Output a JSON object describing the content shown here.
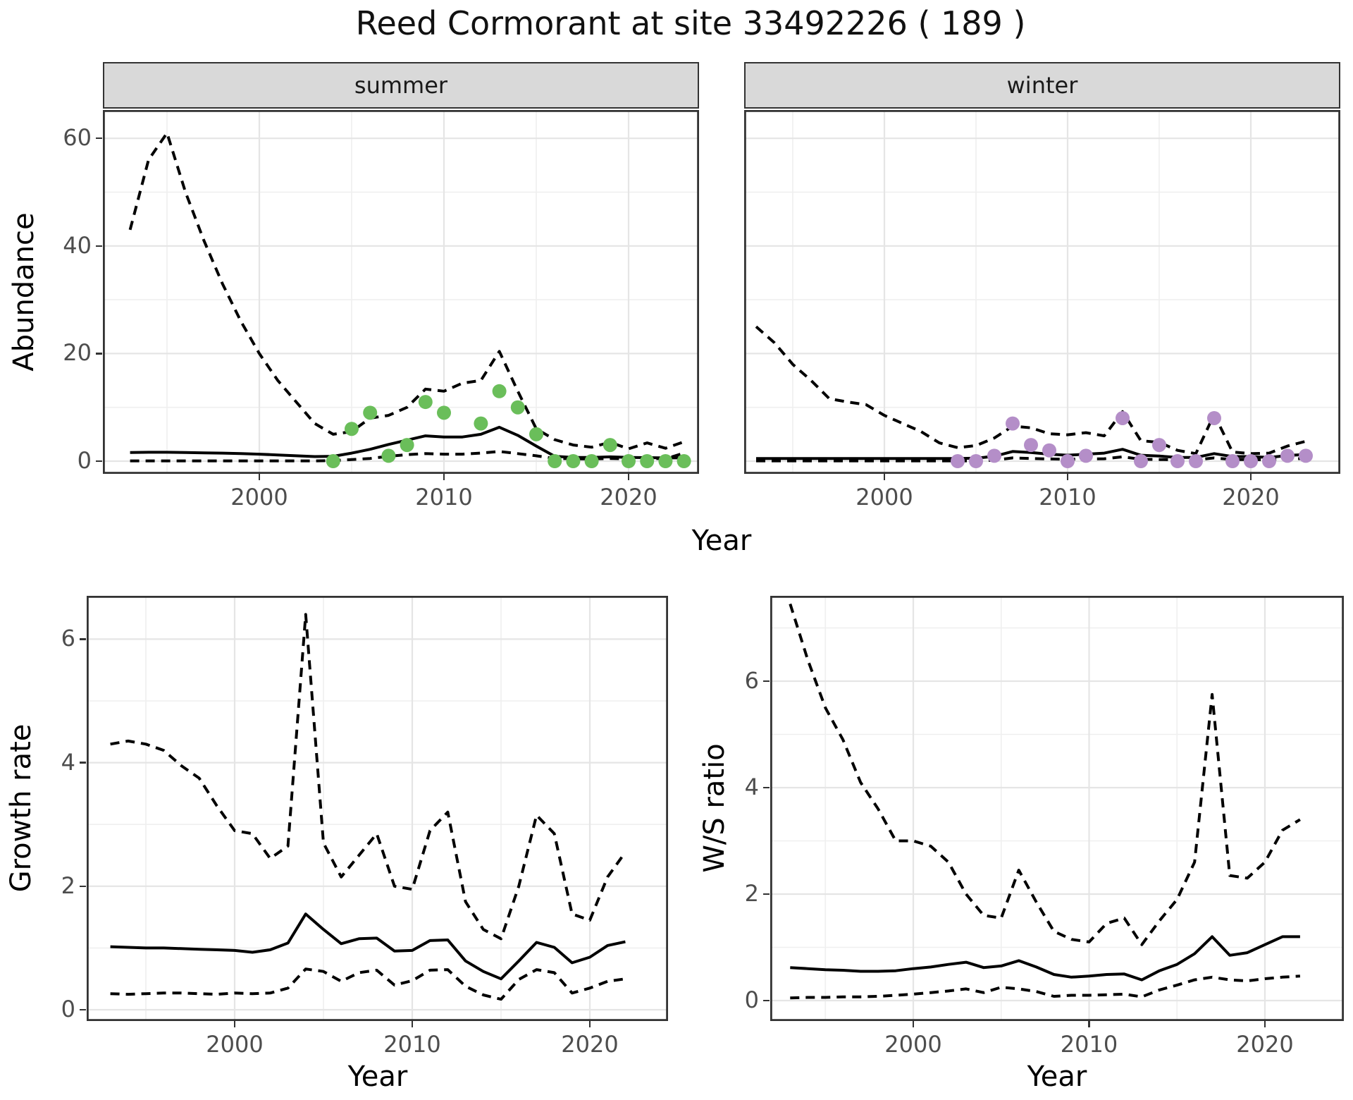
{
  "title": "Reed Cormorant at site 33492226 ( 189 )",
  "colors": {
    "summer_point": "#6abe5a",
    "winter_point": "#b48ec8",
    "line": "#000000",
    "strip_bg": "#d9d9d9",
    "panel_border": "#333333",
    "grid_major": "#e5e5e5",
    "grid_minor": "#efefef",
    "tick_text": "#4d4d4d"
  },
  "chart_data": [
    {
      "id": "abundance-summer",
      "type": "line",
      "facet_label": "summer",
      "ylabel": "Abundance",
      "xlabel": "Year",
      "xlim": [
        1991.5,
        2023.8
      ],
      "ylim": [
        -2.4,
        65.3
      ],
      "xticks": [
        2000,
        2010,
        2020
      ],
      "xticks_minor": [
        1995,
        2005,
        2015
      ],
      "yticks": [
        0,
        20,
        40,
        60
      ],
      "yticks_minor": [
        10,
        30,
        50
      ],
      "grid": true,
      "legend": "none",
      "series": [
        {
          "name": "upper_ci",
          "style": "dashed",
          "x": [
            1993,
            1994,
            1995,
            1996,
            1997,
            1998,
            1999,
            2000,
            2001,
            2002,
            2003,
            2004,
            2005,
            2006,
            2007,
            2008,
            2009,
            2010,
            2011,
            2012,
            2013,
            2014,
            2015,
            2016,
            2017,
            2018,
            2019,
            2020,
            2021,
            2022,
            2023
          ],
          "y": [
            43,
            56,
            61,
            50,
            41,
            33,
            26,
            20,
            15,
            11,
            7,
            5,
            5.5,
            8,
            8.5,
            10,
            13.4,
            13,
            14.5,
            15,
            20.4,
            13,
            6,
            4,
            3,
            2.6,
            3.5,
            2.3,
            3.4,
            2.4,
            3.6
          ]
        },
        {
          "name": "fit",
          "style": "solid",
          "x": [
            1993,
            1994,
            1995,
            1996,
            1997,
            1998,
            1999,
            2000,
            2001,
            2002,
            2003,
            2004,
            2005,
            2006,
            2007,
            2008,
            2009,
            2010,
            2011,
            2012,
            2013,
            2014,
            2015,
            2016,
            2017,
            2018,
            2019,
            2020,
            2021,
            2022,
            2023
          ],
          "y": [
            1.6,
            1.65,
            1.65,
            1.6,
            1.55,
            1.5,
            1.4,
            1.3,
            1.15,
            1.0,
            0.85,
            0.9,
            1.5,
            2.2,
            3.1,
            3.9,
            4.7,
            4.5,
            4.5,
            5.0,
            6.3,
            4.8,
            2.8,
            0.9,
            0.7,
            0.7,
            0.8,
            0.7,
            0.65,
            0.6,
            0.6
          ]
        },
        {
          "name": "lower_ci",
          "style": "dashed",
          "x": [
            1993,
            1994,
            1995,
            1996,
            1997,
            1998,
            1999,
            2000,
            2001,
            2002,
            2003,
            2004,
            2005,
            2006,
            2007,
            2008,
            2009,
            2010,
            2011,
            2012,
            2013,
            2014,
            2015,
            2016,
            2017,
            2018,
            2019,
            2020,
            2021,
            2022,
            2023
          ],
          "y": [
            0.05,
            0.05,
            0.05,
            0.05,
            0.05,
            0.05,
            0.05,
            0.05,
            0.05,
            0.05,
            0.05,
            0.1,
            0.3,
            0.5,
            0.9,
            1.2,
            1.4,
            1.3,
            1.3,
            1.5,
            1.8,
            1.4,
            1.0,
            0.5,
            0.45,
            0.4,
            0.5,
            0.4,
            0.5,
            0.45,
            1.5
          ]
        },
        {
          "name": "observed",
          "style": "points",
          "color": "#6abe5a",
          "x": [
            2004,
            2005,
            2006,
            2007,
            2008,
            2009,
            2010,
            2012,
            2013,
            2014,
            2015,
            2016,
            2017,
            2018,
            2019,
            2020,
            2021,
            2022,
            2023
          ],
          "y": [
            0,
            6,
            9,
            1,
            3,
            11,
            9,
            7,
            13,
            10,
            5,
            0,
            0,
            0,
            3,
            0,
            0,
            0,
            0
          ]
        }
      ]
    },
    {
      "id": "abundance-winter",
      "type": "line",
      "facet_label": "winter",
      "ylabel": "Abundance",
      "xlabel": "Year",
      "xlim": [
        1991.5,
        2023.8
      ],
      "ylim": [
        -2.4,
        65.3
      ],
      "xticks": [
        2000,
        2010,
        2020
      ],
      "xticks_minor": [
        1995,
        2005,
        2015
      ],
      "yticks": [
        0,
        20,
        40,
        60
      ],
      "yticks_minor": [
        10,
        30,
        50
      ],
      "grid": true,
      "legend": "none",
      "series": [
        {
          "name": "upper_ci",
          "style": "dashed",
          "x": [
            1993,
            1994,
            1995,
            1996,
            1997,
            1998,
            1999,
            2000,
            2001,
            2002,
            2003,
            2004,
            2005,
            2006,
            2007,
            2008,
            2009,
            2010,
            2011,
            2012,
            2013,
            2014,
            2015,
            2016,
            2017,
            2018,
            2019,
            2020,
            2021,
            2022,
            2023
          ],
          "y": [
            25,
            22,
            18,
            15,
            11.6,
            11,
            10.5,
            8.5,
            7,
            5.5,
            3.4,
            2.5,
            2.9,
            4.3,
            6.5,
            6.2,
            5.1,
            4.9,
            5.3,
            4.7,
            9.2,
            3.8,
            3.5,
            2.0,
            1.4,
            8.7,
            1.7,
            1.4,
            1.5,
            2.8,
            3.7
          ]
        },
        {
          "name": "fit",
          "style": "solid",
          "x": [
            1993,
            1994,
            1995,
            1996,
            1997,
            1998,
            1999,
            2000,
            2001,
            2002,
            2003,
            2004,
            2005,
            2006,
            2007,
            2008,
            2009,
            2010,
            2011,
            2012,
            2013,
            2014,
            2015,
            2016,
            2017,
            2018,
            2019,
            2020,
            2021,
            2022,
            2023
          ],
          "y": [
            0.5,
            0.5,
            0.5,
            0.5,
            0.5,
            0.5,
            0.5,
            0.5,
            0.5,
            0.5,
            0.5,
            0.5,
            0.55,
            0.9,
            1.8,
            1.6,
            1.3,
            1.1,
            1.3,
            1.5,
            2.2,
            1.1,
            0.95,
            0.7,
            0.7,
            1.4,
            0.85,
            0.85,
            0.7,
            1.05,
            1.25
          ]
        },
        {
          "name": "lower_ci",
          "style": "dashed",
          "x": [
            1993,
            1994,
            1995,
            1996,
            1997,
            1998,
            1999,
            2000,
            2001,
            2002,
            2003,
            2004,
            2005,
            2006,
            2007,
            2008,
            2009,
            2010,
            2011,
            2012,
            2013,
            2014,
            2015,
            2016,
            2017,
            2018,
            2019,
            2020,
            2021,
            2022,
            2023
          ],
          "y": [
            0.05,
            0.05,
            0.05,
            0.05,
            0.05,
            0.05,
            0.05,
            0.05,
            0.05,
            0.05,
            0.05,
            0.05,
            0.05,
            0.2,
            0.6,
            0.5,
            0.4,
            0.35,
            0.4,
            0.45,
            0.8,
            0.35,
            0.3,
            0.25,
            0.25,
            0.6,
            0.3,
            0.3,
            0.25,
            0.4,
            0.5
          ]
        },
        {
          "name": "observed",
          "style": "points",
          "color": "#b48ec8",
          "x": [
            2004,
            2005,
            2006,
            2007,
            2008,
            2009,
            2010,
            2011,
            2013,
            2014,
            2015,
            2016,
            2017,
            2018,
            2019,
            2020,
            2021,
            2022,
            2023
          ],
          "y": [
            0,
            0,
            1,
            7,
            3,
            2,
            0,
            1,
            8,
            0,
            3,
            0,
            0,
            8,
            0,
            0,
            0,
            1,
            1
          ]
        }
      ]
    },
    {
      "id": "growth-rate",
      "type": "line",
      "facet_label": "",
      "ylabel": "Growth rate",
      "xlabel": "Year",
      "xlim": [
        1991.7,
        2024.4
      ],
      "ylim": [
        -0.18,
        6.7
      ],
      "xticks": [
        2000,
        2010,
        2020
      ],
      "xticks_minor": [
        1995,
        2005,
        2015
      ],
      "yticks": [
        0,
        2,
        4,
        6
      ],
      "yticks_minor": [
        1,
        3,
        5
      ],
      "grid": true,
      "legend": "none",
      "series": [
        {
          "name": "upper_ci",
          "style": "dashed",
          "x": [
            1993,
            1994,
            1995,
            1996,
            1997,
            1998,
            1999,
            2000,
            2001,
            2002,
            2003,
            2004,
            2005,
            2006,
            2007,
            2008,
            2009,
            2010,
            2011,
            2012,
            2013,
            2014,
            2015,
            2016,
            2017,
            2018,
            2019,
            2020,
            2021,
            2022
          ],
          "y": [
            4.3,
            4.35,
            4.3,
            4.2,
            3.95,
            3.75,
            3.3,
            2.9,
            2.85,
            2.45,
            2.65,
            6.4,
            2.7,
            2.15,
            2.5,
            2.85,
            2.0,
            1.95,
            2.9,
            3.2,
            1.75,
            1.3,
            1.15,
            2.0,
            3.15,
            2.85,
            1.55,
            1.45,
            2.15,
            2.55
          ]
        },
        {
          "name": "fit",
          "style": "solid",
          "x": [
            1993,
            1994,
            1995,
            1996,
            1997,
            1998,
            1999,
            2000,
            2001,
            2002,
            2003,
            2004,
            2005,
            2006,
            2007,
            2008,
            2009,
            2010,
            2011,
            2012,
            2013,
            2014,
            2015,
            2016,
            2017,
            2018,
            2019,
            2020,
            2021,
            2022
          ],
          "y": [
            1.02,
            1.01,
            1.0,
            1.0,
            0.99,
            0.98,
            0.97,
            0.96,
            0.93,
            0.97,
            1.08,
            1.55,
            1.3,
            1.07,
            1.15,
            1.16,
            0.95,
            0.96,
            1.12,
            1.13,
            0.79,
            0.62,
            0.5,
            0.79,
            1.09,
            1.01,
            0.76,
            0.85,
            1.04,
            1.1
          ]
        },
        {
          "name": "lower_ci",
          "style": "dashed",
          "x": [
            1993,
            1994,
            1995,
            1996,
            1997,
            1998,
            1999,
            2000,
            2001,
            2002,
            2003,
            2004,
            2005,
            2006,
            2007,
            2008,
            2009,
            2010,
            2011,
            2012,
            2013,
            2014,
            2015,
            2016,
            2017,
            2018,
            2019,
            2020,
            2021,
            2022
          ],
          "y": [
            0.26,
            0.25,
            0.26,
            0.27,
            0.27,
            0.26,
            0.25,
            0.27,
            0.26,
            0.27,
            0.35,
            0.66,
            0.62,
            0.46,
            0.6,
            0.64,
            0.4,
            0.47,
            0.64,
            0.65,
            0.38,
            0.24,
            0.17,
            0.49,
            0.65,
            0.6,
            0.27,
            0.35,
            0.46,
            0.5
          ]
        }
      ]
    },
    {
      "id": "ws-ratio",
      "type": "line",
      "facet_label": "",
      "ylabel": "W/S ratio",
      "xlabel": "Year",
      "xlim": [
        1991.9,
        2024.5
      ],
      "ylim": [
        -0.38,
        7.6
      ],
      "xticks": [
        2000,
        2010,
        2020
      ],
      "xticks_minor": [
        1995,
        2005,
        2015
      ],
      "yticks": [
        0,
        2,
        4,
        6
      ],
      "yticks_minor": [
        1,
        3,
        5,
        7
      ],
      "grid": true,
      "legend": "none",
      "series": [
        {
          "name": "upper_ci",
          "style": "dashed",
          "x": [
            1993,
            1994,
            1995,
            1996,
            1997,
            1998,
            1999,
            2000,
            2001,
            2002,
            2003,
            2004,
            2005,
            2006,
            2007,
            2008,
            2009,
            2010,
            2011,
            2012,
            2013,
            2014,
            2015,
            2016,
            2017,
            2018,
            2019,
            2020,
            2021,
            2022
          ],
          "y": [
            7.45,
            6.4,
            5.5,
            4.9,
            4.1,
            3.6,
            3.0,
            3.0,
            2.9,
            2.6,
            2.0,
            1.6,
            1.55,
            2.45,
            1.85,
            1.3,
            1.15,
            1.1,
            1.45,
            1.55,
            1.05,
            1.5,
            1.9,
            2.6,
            5.75,
            2.35,
            2.3,
            2.6,
            3.2,
            3.4
          ]
        },
        {
          "name": "fit",
          "style": "solid",
          "x": [
            1993,
            1994,
            1995,
            1996,
            1997,
            1998,
            1999,
            2000,
            2001,
            2002,
            2003,
            2004,
            2005,
            2006,
            2007,
            2008,
            2009,
            2010,
            2011,
            2012,
            2013,
            2014,
            2015,
            2016,
            2017,
            2018,
            2019,
            2020,
            2021,
            2022
          ],
          "y": [
            0.62,
            0.6,
            0.58,
            0.57,
            0.55,
            0.55,
            0.56,
            0.6,
            0.63,
            0.68,
            0.72,
            0.62,
            0.65,
            0.75,
            0.63,
            0.49,
            0.44,
            0.46,
            0.49,
            0.5,
            0.39,
            0.56,
            0.68,
            0.88,
            1.2,
            0.85,
            0.9,
            1.05,
            1.2,
            1.2
          ]
        },
        {
          "name": "lower_ci",
          "style": "dashed",
          "x": [
            1993,
            1994,
            1995,
            1996,
            1997,
            1998,
            1999,
            2000,
            2001,
            2002,
            2003,
            2004,
            2005,
            2006,
            2007,
            2008,
            2009,
            2010,
            2011,
            2012,
            2013,
            2014,
            2015,
            2016,
            2017,
            2018,
            2019,
            2020,
            2021,
            2022
          ],
          "y": [
            0.05,
            0.06,
            0.06,
            0.07,
            0.07,
            0.08,
            0.1,
            0.12,
            0.15,
            0.18,
            0.22,
            0.15,
            0.25,
            0.22,
            0.17,
            0.08,
            0.1,
            0.1,
            0.11,
            0.12,
            0.07,
            0.2,
            0.29,
            0.39,
            0.44,
            0.39,
            0.37,
            0.41,
            0.44,
            0.46
          ]
        }
      ]
    }
  ]
}
